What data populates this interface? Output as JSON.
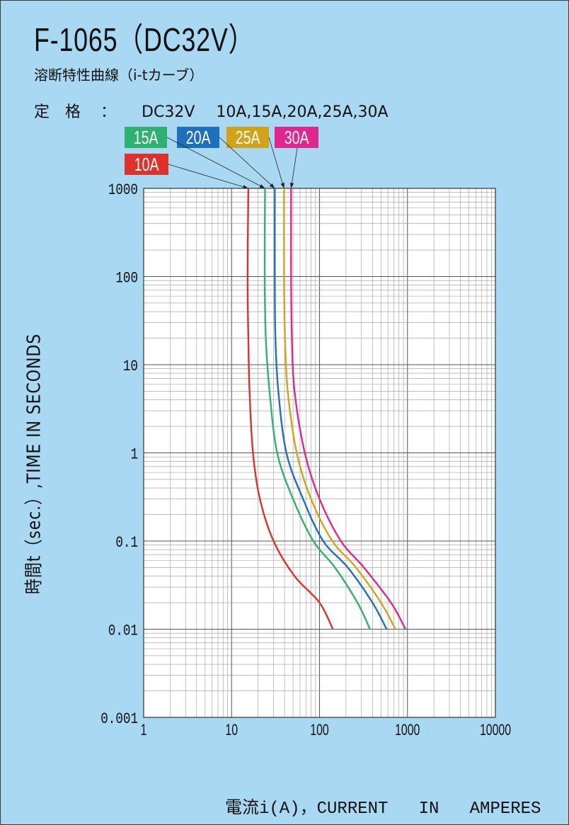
{
  "title": "F-1065（DC32V）",
  "subtitle": "溶断特性曲線（i-tカーブ）",
  "rating": {
    "label": "定格",
    "colon": "：",
    "voltage": "DC32V",
    "currents": "10A,15A,20A,25A,30A"
  },
  "legend": [
    {
      "label": "15A",
      "color": "#2db36f"
    },
    {
      "label": "20A",
      "color": "#1f6fbf"
    },
    {
      "label": "25A",
      "color": "#d2a318"
    },
    {
      "label": "30A",
      "color": "#e0268f"
    },
    {
      "label": "10A",
      "color": "#e0302a"
    }
  ],
  "axes": {
    "ylabel": "時間t（sec.）,TIME   IN   SECONDS",
    "xlabel": "電流i(A)，CURRENT   IN   AMPERES"
  },
  "chart_data": {
    "type": "line",
    "xscale": "log",
    "yscale": "log",
    "xlim": [
      1,
      10000
    ],
    "ylim": [
      0.001,
      1000
    ],
    "x_ticks": [
      "1",
      "10",
      "100",
      "1000",
      "10000"
    ],
    "y_ticks": [
      "1000",
      "100",
      "10",
      "1",
      "0.1",
      "0.01",
      "0.001"
    ],
    "grid": true,
    "series": [
      {
        "name": "10A",
        "color": "#e0302a",
        "points": [
          [
            15.5,
            1000
          ],
          [
            15.2,
            100
          ],
          [
            15.5,
            20
          ],
          [
            16,
            5
          ],
          [
            17.5,
            1
          ],
          [
            21,
            0.3
          ],
          [
            30,
            0.1
          ],
          [
            52,
            0.04
          ],
          [
            100,
            0.02
          ],
          [
            142,
            0.01
          ]
        ]
      },
      {
        "name": "15A",
        "color": "#2db36f",
        "points": [
          [
            24,
            1000
          ],
          [
            23.8,
            100
          ],
          [
            24.5,
            20
          ],
          [
            27,
            5
          ],
          [
            33,
            1
          ],
          [
            50,
            0.3
          ],
          [
            85,
            0.1
          ],
          [
            150,
            0.05
          ],
          [
            270,
            0.02
          ],
          [
            375,
            0.01
          ]
        ]
      },
      {
        "name": "20A",
        "color": "#1f6fbf",
        "points": [
          [
            31,
            1000
          ],
          [
            31,
            100
          ],
          [
            31.5,
            20
          ],
          [
            34,
            5
          ],
          [
            42,
            1
          ],
          [
            65,
            0.3
          ],
          [
            110,
            0.1
          ],
          [
            210,
            0.05
          ],
          [
            400,
            0.02
          ],
          [
            580,
            0.01
          ]
        ]
      },
      {
        "name": "25A",
        "color": "#d2a318",
        "points": [
          [
            39.5,
            1000
          ],
          [
            39.5,
            100
          ],
          [
            40.5,
            20
          ],
          [
            43.5,
            5
          ],
          [
            55,
            1
          ],
          [
            80,
            0.3
          ],
          [
            140,
            0.1
          ],
          [
            260,
            0.05
          ],
          [
            500,
            0.02
          ],
          [
            730,
            0.01
          ]
        ]
      },
      {
        "name": "30A",
        "color": "#e0268f",
        "points": [
          [
            47.5,
            1000
          ],
          [
            47.5,
            100
          ],
          [
            48.5,
            20
          ],
          [
            52,
            5
          ],
          [
            68,
            1
          ],
          [
            100,
            0.3
          ],
          [
            175,
            0.1
          ],
          [
            320,
            0.05
          ],
          [
            650,
            0.02
          ],
          [
            950,
            0.01
          ]
        ]
      }
    ]
  }
}
